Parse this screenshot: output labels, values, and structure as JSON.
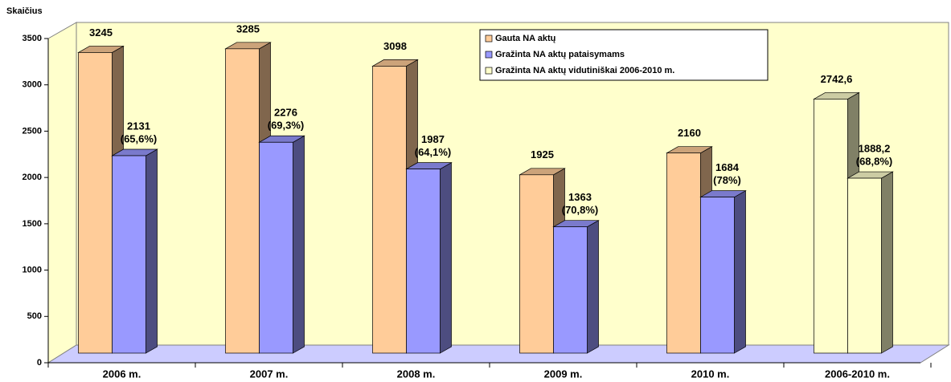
{
  "chart_data": {
    "type": "bar3d",
    "y_axis_label": "Skaičius",
    "categories": [
      "2006 m.",
      "2007 m.",
      "2008 m.",
      "2009 m.",
      "2010 m.",
      "2006-2010 m."
    ],
    "ylim": [
      0,
      3500
    ],
    "yticks": [
      0,
      500,
      1000,
      1500,
      2000,
      2500,
      3000,
      3500
    ],
    "series": [
      {
        "name": "Gauta NA aktų",
        "color": "#ffcc99",
        "values": [
          3245,
          3285,
          3098,
          1925,
          2160,
          2742.6
        ],
        "value_labels": [
          "3245",
          "3285",
          "3098",
          "1925",
          "2160",
          "2742,6"
        ],
        "point_colors": [
          "#ffcc99",
          "#ffcc99",
          "#ffcc99",
          "#ffcc99",
          "#ffcc99",
          "#ffffcc"
        ]
      },
      {
        "name": "Gražinta NA aktų pataisymams",
        "color": "#9999ff",
        "values": [
          2131,
          2276,
          1987,
          1363,
          1684,
          1888.2
        ],
        "value_labels": [
          [
            "2131",
            "(65,6%)"
          ],
          [
            "2276",
            "(69,3%)"
          ],
          [
            "1987",
            "(64,1%)"
          ],
          [
            "1363",
            "(70,8%)"
          ],
          [
            "1684",
            "(78%)"
          ],
          [
            "1888,2",
            "(68,8%)"
          ]
        ],
        "point_colors": [
          "#9999ff",
          "#9999ff",
          "#9999ff",
          "#9999ff",
          "#9999ff",
          "#ffffcc"
        ]
      },
      {
        "name": "Gražinta NA aktų vidutiniškai 2006-2010 m.",
        "color": "#ffffcc"
      }
    ]
  }
}
